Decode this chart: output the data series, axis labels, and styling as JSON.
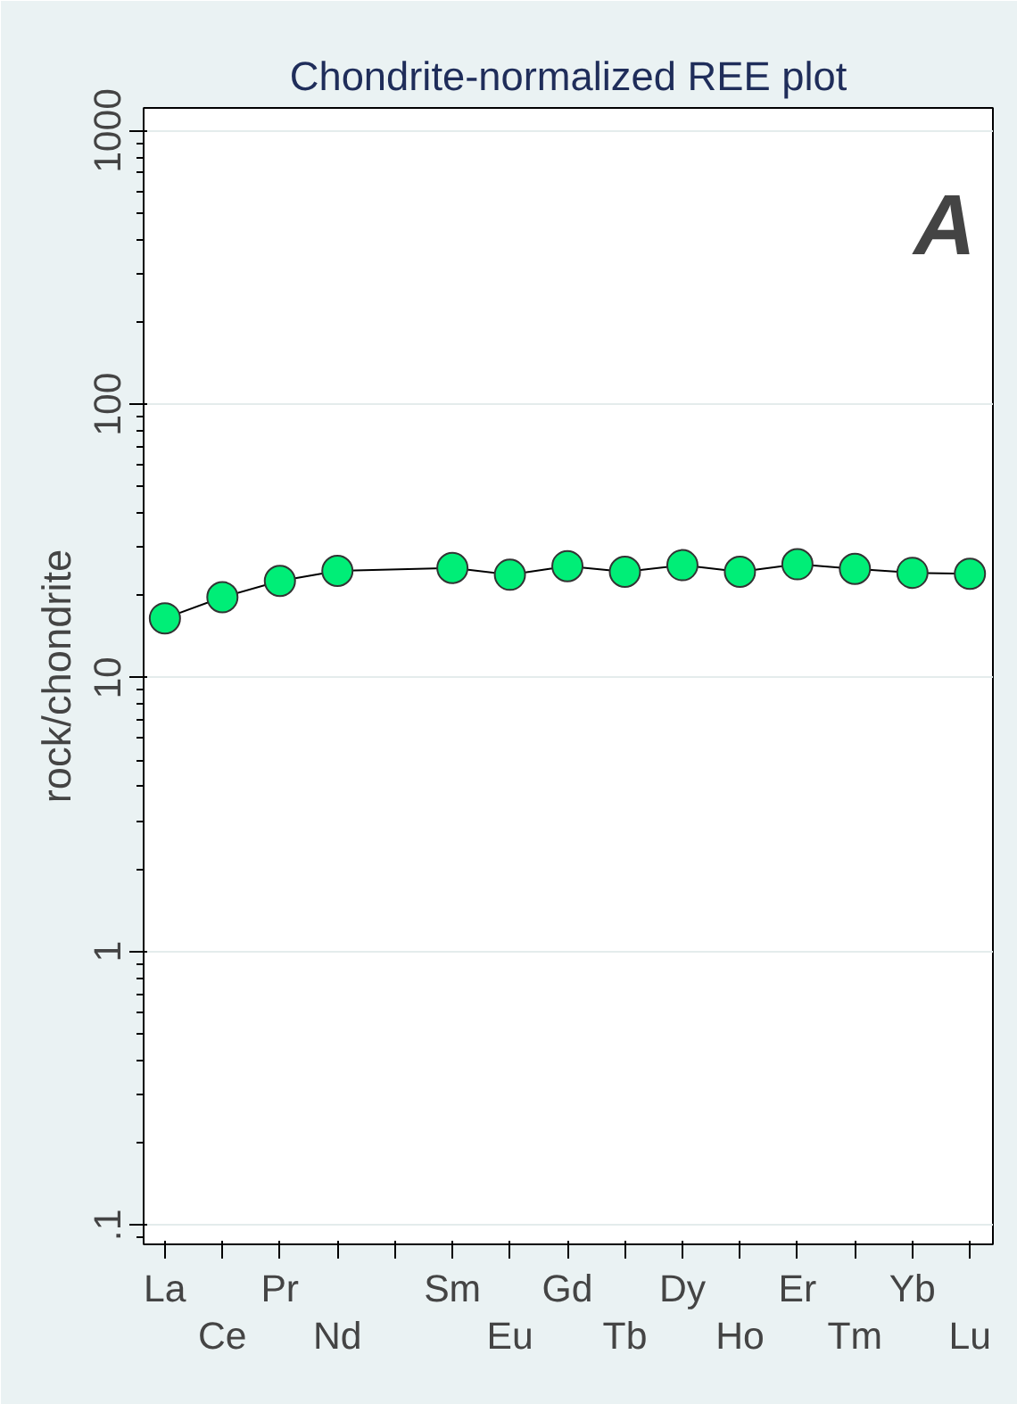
{
  "chart_data": {
    "type": "line",
    "title": "Chondrite-normalized REE plot",
    "ylabel": "rock/chondrite",
    "categories": [
      "La",
      "Ce",
      "Pr",
      "Nd",
      null,
      "Sm",
      "Eu",
      "Gd",
      "Tb",
      "Dy",
      "Ho",
      "Er",
      "Tm",
      "Yb",
      "Lu"
    ],
    "series": [
      {
        "color": "#00ee77",
        "values": [
          16.5,
          19.7,
          22.6,
          24.6,
          null,
          25.2,
          23.8,
          25.6,
          24.4,
          25.8,
          24.4,
          26.0,
          25.0,
          24.2,
          24.0
        ]
      }
    ],
    "log": true,
    "ylim": [
      0.085,
      1210
    ],
    "yticks": [
      {
        "value": 0.1,
        "label": ".1"
      },
      1,
      10,
      100,
      1000
    ],
    "grid": "y",
    "marker": "circle",
    "annotations": [
      "A"
    ]
  }
}
